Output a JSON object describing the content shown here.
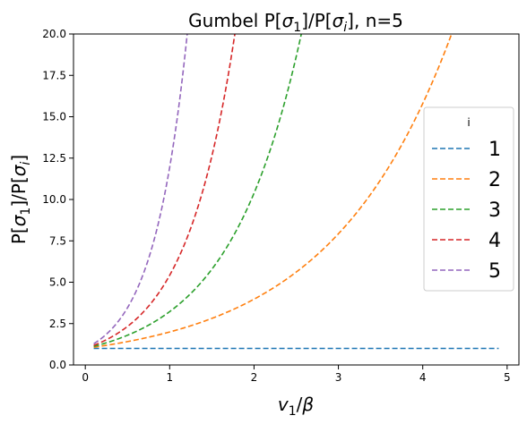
{
  "chart_data": {
    "type": "line",
    "title": "Gumbel P[σ_1]/P[σ_i], n=5",
    "xlabel": "v_1/β",
    "ylabel": "P[σ_1]/P[σ_i]",
    "xlim": [
      -0.14,
      5.14
    ],
    "ylim": [
      0,
      20
    ],
    "xticks": [
      0,
      1,
      2,
      3,
      4,
      5
    ],
    "yticks": [
      0.0,
      2.5,
      5.0,
      7.5,
      10.0,
      12.5,
      15.0,
      17.5,
      20.0
    ],
    "ytick_labels": [
      "0.0",
      "2.5",
      "5.0",
      "7.5",
      "10.0",
      "12.5",
      "15.0",
      "17.5",
      "20.0"
    ],
    "grid": false,
    "legend": {
      "title": "i",
      "placement": "right"
    },
    "x_range": [
      0.1,
      4.9
    ],
    "line_style": "dashed",
    "series": [
      {
        "name": "1",
        "color": "#1f77b4",
        "exponent_multiplier": 0
      },
      {
        "name": "2",
        "color": "#ff7f0e",
        "exponent_multiplier": 0.69
      },
      {
        "name": "3",
        "color": "#2ca02c",
        "exponent_multiplier": 1.17
      },
      {
        "name": "4",
        "color": "#d62728",
        "exponent_multiplier": 1.69
      },
      {
        "name": "5",
        "color": "#9467bd",
        "exponent_multiplier": 2.48
      }
    ]
  }
}
